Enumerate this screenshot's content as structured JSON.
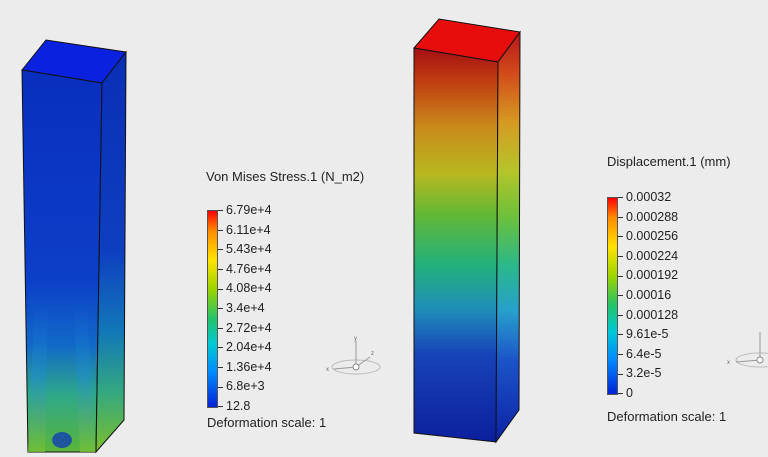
{
  "left_panel": {
    "legend": {
      "title": "Von Mises Stress.1 (N_m2)",
      "ticks": [
        "6.79e+4",
        "6.11e+4",
        "5.43e+4",
        "4.76e+4",
        "4.08e+4",
        "3.4e+4",
        "2.72e+4",
        "2.04e+4",
        "1.36e+4",
        "6.8e+3",
        "12.8"
      ],
      "deformation_scale": "Deformation scale: 1"
    }
  },
  "right_panel": {
    "legend": {
      "title": "Displacement.1 (mm)",
      "ticks": [
        "0.00032",
        "0.000288",
        "0.000256",
        "0.000224",
        "0.000192",
        "0.00016",
        "0.000128",
        "9.61e-5",
        "6.4e-5",
        "3.2e-5",
        "0"
      ],
      "deformation_scale": "Deformation scale: 1"
    }
  },
  "triad": {
    "x_label": "x",
    "y_label": "y",
    "z_label": "z"
  },
  "colors": {
    "background": "#ececec",
    "max": "#ff0000",
    "min": "#0022d8"
  }
}
